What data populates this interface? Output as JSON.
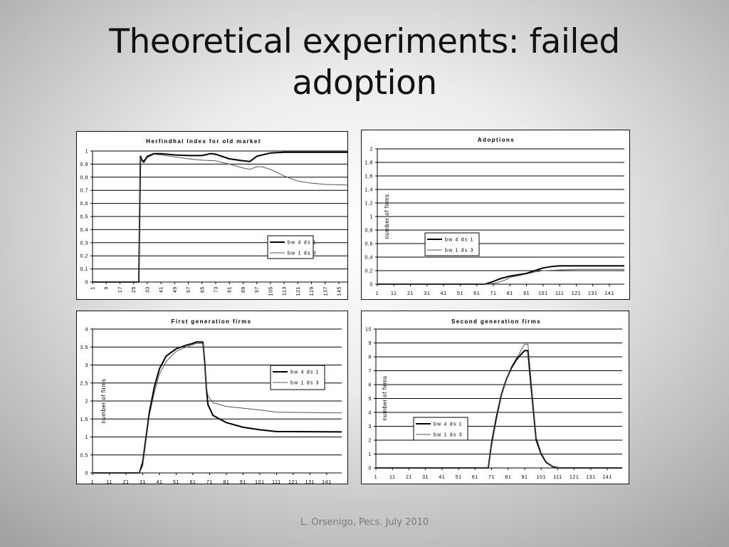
{
  "slide": {
    "title_line1": "Theoretical experiments: failed",
    "title_line2": "adoption",
    "footer": "L. Orsenigo, Pecs. July 2010"
  },
  "chart_data": [
    {
      "id": "herfindhal",
      "type": "line",
      "title": "Herfindhal Index for old market",
      "xlabel": "",
      "ylabel": "",
      "xlim": [
        1,
        150
      ],
      "ylim": [
        0,
        1
      ],
      "yticks": [
        0,
        0.1,
        0.2,
        0.3,
        0.4,
        0.5,
        0.6,
        0.7,
        0.8,
        0.9,
        1
      ],
      "yticklabels": [
        "0",
        "0,1",
        "0,2",
        "0,3",
        "0,4",
        "0,5",
        "0,6",
        "0,7",
        "0,8",
        "0,9",
        "1"
      ],
      "xticks": [
        1,
        9,
        17,
        25,
        33,
        41,
        49,
        57,
        65,
        73,
        81,
        89,
        97,
        105,
        113,
        121,
        129,
        137,
        145
      ],
      "xtick_rotated": true,
      "grid": true,
      "legend": "right",
      "series": [
        {
          "name": "bw 4 ds 1",
          "style": "thick",
          "points": [
            [
              1,
              0
            ],
            [
              28,
              0
            ],
            [
              29,
              0.96
            ],
            [
              30,
              0.93
            ],
            [
              31,
              0.92
            ],
            [
              33,
              0.96
            ],
            [
              37,
              0.98
            ],
            [
              41,
              0.98
            ],
            [
              49,
              0.97
            ],
            [
              57,
              0.965
            ],
            [
              65,
              0.965
            ],
            [
              70,
              0.98
            ],
            [
              73,
              0.975
            ],
            [
              81,
              0.94
            ],
            [
              89,
              0.925
            ],
            [
              93,
              0.92
            ],
            [
              97,
              0.96
            ],
            [
              105,
              0.985
            ],
            [
              113,
              0.99
            ],
            [
              150,
              0.99
            ]
          ]
        },
        {
          "name": "bw 1 ds 3",
          "style": "thin",
          "points": [
            [
              1,
              0
            ],
            [
              28,
              0
            ],
            [
              29,
              0.95
            ],
            [
              30,
              0.92
            ],
            [
              31,
              0.91
            ],
            [
              33,
              0.95
            ],
            [
              37,
              0.975
            ],
            [
              41,
              0.97
            ],
            [
              49,
              0.955
            ],
            [
              57,
              0.94
            ],
            [
              65,
              0.93
            ],
            [
              73,
              0.925
            ],
            [
              81,
              0.9
            ],
            [
              89,
              0.87
            ],
            [
              93,
              0.86
            ],
            [
              97,
              0.88
            ],
            [
              100,
              0.88
            ],
            [
              105,
              0.86
            ],
            [
              113,
              0.81
            ],
            [
              121,
              0.77
            ],
            [
              129,
              0.755
            ],
            [
              137,
              0.745
            ],
            [
              145,
              0.742
            ],
            [
              150,
              0.74
            ]
          ]
        }
      ]
    },
    {
      "id": "adoptions",
      "type": "line",
      "title": "Adoptions",
      "xlabel": "",
      "ylabel": "number of firms",
      "xlim": [
        1,
        150
      ],
      "ylim": [
        0,
        2
      ],
      "yticks": [
        0,
        0.2,
        0.4,
        0.6,
        0.8,
        1,
        1.2,
        1.4,
        1.6,
        1.8,
        2
      ],
      "yticklabels": [
        "0",
        "0,2",
        "0,4",
        "0,6",
        "0,8",
        "1",
        "1,2",
        "1,4",
        "1,6",
        "1,8",
        "2"
      ],
      "xticks": [
        1,
        11,
        21,
        31,
        41,
        51,
        61,
        71,
        81,
        91,
        101,
        111,
        121,
        131,
        141
      ],
      "grid": true,
      "legend": "center",
      "series": [
        {
          "name": "bw 4 ds 1",
          "style": "thick",
          "points": [
            [
              1,
              0
            ],
            [
              66,
              0
            ],
            [
              71,
              0.04
            ],
            [
              75,
              0.08
            ],
            [
              81,
              0.12
            ],
            [
              91,
              0.16
            ],
            [
              96,
              0.2
            ],
            [
              101,
              0.24
            ],
            [
              106,
              0.26
            ],
            [
              111,
              0.27
            ],
            [
              150,
              0.27
            ]
          ]
        },
        {
          "name": "bw 1 ds 3",
          "style": "thin",
          "points": [
            [
              1,
              0
            ],
            [
              68,
              0
            ],
            [
              73,
              0.02
            ],
            [
              78,
              0.06
            ],
            [
              81,
              0.1
            ],
            [
              91,
              0.15
            ],
            [
              96,
              0.18
            ],
            [
              101,
              0.2
            ],
            [
              111,
              0.21
            ],
            [
              121,
              0.22
            ],
            [
              150,
              0.22
            ]
          ]
        }
      ]
    },
    {
      "id": "first_gen",
      "type": "line",
      "title": "First generation firms",
      "xlabel": "",
      "ylabel": "number of firms",
      "xlim": [
        1,
        150
      ],
      "ylim": [
        0,
        4
      ],
      "yticks": [
        0,
        0.5,
        1,
        1.5,
        2,
        2.5,
        3,
        3.5,
        4
      ],
      "yticklabels": [
        "0",
        "0,5",
        "1",
        "1,5",
        "2",
        "2,5",
        "3",
        "3,5",
        "4"
      ],
      "xticks": [
        1,
        11,
        21,
        31,
        41,
        51,
        61,
        71,
        81,
        91,
        101,
        111,
        121,
        131,
        141
      ],
      "grid": true,
      "legend": "top-right",
      "series": [
        {
          "name": "bw 4 ds 1",
          "style": "thick",
          "points": [
            [
              1,
              0
            ],
            [
              29,
              0
            ],
            [
              31,
              0.3
            ],
            [
              33,
              1.0
            ],
            [
              35,
              1.7
            ],
            [
              38,
              2.4
            ],
            [
              41,
              2.9
            ],
            [
              45,
              3.25
            ],
            [
              51,
              3.45
            ],
            [
              57,
              3.55
            ],
            [
              61,
              3.6
            ],
            [
              63,
              3.64
            ],
            [
              67,
              3.64
            ],
            [
              68,
              3.1
            ],
            [
              69,
              2.4
            ],
            [
              70,
              1.9
            ],
            [
              73,
              1.6
            ],
            [
              81,
              1.4
            ],
            [
              91,
              1.27
            ],
            [
              101,
              1.2
            ],
            [
              111,
              1.15
            ],
            [
              150,
              1.14
            ]
          ]
        },
        {
          "name": "bw 1 ds 3",
          "style": "thin",
          "points": [
            [
              1,
              0
            ],
            [
              29,
              0
            ],
            [
              31,
              0.2
            ],
            [
              33,
              0.9
            ],
            [
              35,
              1.6
            ],
            [
              38,
              2.25
            ],
            [
              41,
              2.75
            ],
            [
              45,
              3.1
            ],
            [
              51,
              3.38
            ],
            [
              57,
              3.5
            ],
            [
              63,
              3.6
            ],
            [
              67,
              3.6
            ],
            [
              68,
              3.0
            ],
            [
              69,
              2.4
            ],
            [
              70,
              2.15
            ],
            [
              73,
              1.95
            ],
            [
              81,
              1.85
            ],
            [
              91,
              1.8
            ],
            [
              101,
              1.75
            ],
            [
              111,
              1.69
            ],
            [
              150,
              1.67
            ]
          ]
        }
      ]
    },
    {
      "id": "second_gen",
      "type": "line",
      "title": "Second generation firms",
      "xlabel": "",
      "ylabel": "number of firms",
      "xlim": [
        1,
        150
      ],
      "ylim": [
        0,
        10
      ],
      "yticks": [
        0,
        1,
        2,
        3,
        4,
        5,
        6,
        7,
        8,
        9,
        10
      ],
      "yticklabels": [
        "0",
        "1",
        "2",
        "3",
        "4",
        "5",
        "6",
        "7",
        "8",
        "9",
        "10"
      ],
      "xticks": [
        1,
        11,
        21,
        31,
        41,
        51,
        61,
        71,
        81,
        91,
        101,
        111,
        121,
        131,
        141
      ],
      "grid": true,
      "legend": "bottom-left",
      "series": [
        {
          "name": "bw 4 ds 1",
          "style": "thick",
          "points": [
            [
              1,
              0
            ],
            [
              69,
              0
            ],
            [
              71,
              1.8
            ],
            [
              74,
              3.7
            ],
            [
              77,
              5.3
            ],
            [
              80,
              6.4
            ],
            [
              83,
              7.2
            ],
            [
              86,
              7.8
            ],
            [
              89,
              8.2
            ],
            [
              91,
              8.45
            ],
            [
              93,
              8.45
            ],
            [
              94,
              7.0
            ],
            [
              96,
              4.5
            ],
            [
              98,
              2.0
            ],
            [
              101,
              1.0
            ],
            [
              104,
              0.4
            ],
            [
              108,
              0.1
            ],
            [
              112,
              0
            ],
            [
              150,
              0
            ]
          ]
        },
        {
          "name": "bw 1 ds 3",
          "style": "thin",
          "points": [
            [
              1,
              0
            ],
            [
              69,
              0
            ],
            [
              71,
              1.6
            ],
            [
              74,
              3.5
            ],
            [
              77,
              5.2
            ],
            [
              80,
              6.4
            ],
            [
              83,
              7.3
            ],
            [
              86,
              7.9
            ],
            [
              89,
              8.5
            ],
            [
              91,
              8.9
            ],
            [
              93,
              8.9
            ],
            [
              94,
              7.5
            ],
            [
              96,
              4.8
            ],
            [
              98,
              2.2
            ],
            [
              101,
              1.1
            ],
            [
              104,
              0.45
            ],
            [
              108,
              0.12
            ],
            [
              112,
              0
            ],
            [
              150,
              0
            ]
          ]
        }
      ]
    }
  ]
}
